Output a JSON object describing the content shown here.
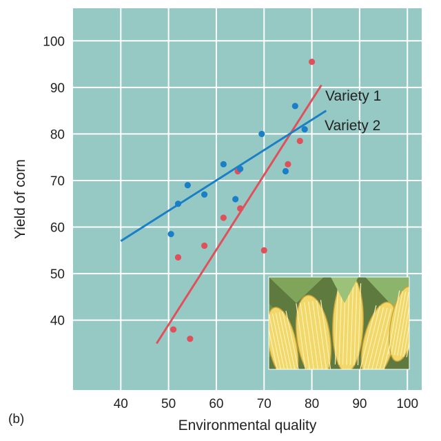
{
  "panel_label": "(b)",
  "colors": {
    "background": "#96c9c4",
    "grid": "#ffffff",
    "variety1": "#e0505a",
    "variety2": "#1a7fc6"
  },
  "chart_data": {
    "type": "scatter",
    "title": "",
    "xlabel": "Environmental quality",
    "ylabel": "Yield of corn",
    "xlim": [
      30,
      103
    ],
    "ylim": [
      25,
      107
    ],
    "xticks": [
      40,
      50,
      60,
      70,
      80,
      90,
      100
    ],
    "yticks": [
      40,
      50,
      60,
      70,
      80,
      90,
      100
    ],
    "grid": true,
    "series": [
      {
        "name": "Variety 1",
        "color": "#e0505a",
        "points": [
          [
            51,
            38
          ],
          [
            52,
            53.5
          ],
          [
            54.5,
            36
          ],
          [
            57.5,
            56
          ],
          [
            61.5,
            62
          ],
          [
            64.5,
            72
          ],
          [
            65,
            64
          ],
          [
            70,
            55
          ],
          [
            75,
            73.5
          ],
          [
            77.5,
            78.5
          ],
          [
            80,
            95.5
          ]
        ],
        "fit_line": [
          [
            47.5,
            35
          ],
          [
            82,
            90.5
          ]
        ]
      },
      {
        "name": "Variety 2",
        "color": "#1a7fc6",
        "points": [
          [
            50.5,
            58.5
          ],
          [
            52,
            65
          ],
          [
            54,
            69
          ],
          [
            57.5,
            67
          ],
          [
            61.5,
            73.5
          ],
          [
            64,
            66
          ],
          [
            65,
            72.5
          ],
          [
            69.5,
            80
          ],
          [
            74.5,
            72
          ],
          [
            76.5,
            86
          ],
          [
            78.5,
            81
          ]
        ],
        "fit_line": [
          [
            40,
            57
          ],
          [
            83,
            85
          ]
        ]
      }
    ],
    "line_labels": [
      "Variety 1",
      "Variety 2"
    ]
  },
  "photo": {
    "subject": "ears of corn"
  }
}
